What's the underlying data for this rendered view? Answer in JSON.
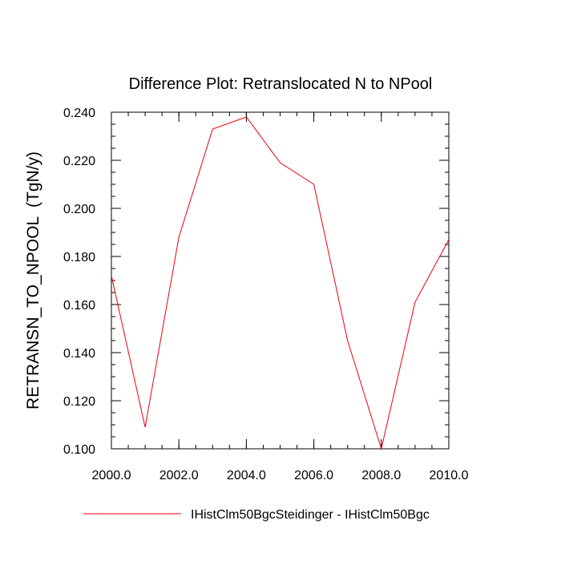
{
  "chart_data": {
    "type": "line",
    "title": "Difference Plot: Retranslocated N to NPool",
    "xlabel": "",
    "ylabel": "RETRANSN_TO_NPOOL  (TgN/y)",
    "xlim": [
      2000,
      2010
    ],
    "ylim": [
      0.1,
      0.24
    ],
    "x_ticks": [
      2000,
      2002,
      2004,
      2006,
      2008,
      2010
    ],
    "x_tick_labels": [
      "2000.0",
      "2002.0",
      "2004.0",
      "2006.0",
      "2008.0",
      "2010.0"
    ],
    "y_ticks": [
      0.1,
      0.12,
      0.14,
      0.16,
      0.18,
      0.2,
      0.22,
      0.24
    ],
    "y_tick_labels": [
      "0.100",
      "0.120",
      "0.140",
      "0.160",
      "0.180",
      "0.200",
      "0.220",
      "0.240"
    ],
    "grid": false,
    "legend_position": "bottom",
    "series": [
      {
        "name": "IHistClm50BgcSteidinger - IHistClm50Bgc",
        "color": "#e8000b",
        "x": [
          2000,
          2001,
          2002,
          2003,
          2004,
          2005,
          2006,
          2007,
          2008,
          2009,
          2010
        ],
        "y": [
          0.172,
          0.109,
          0.188,
          0.233,
          0.238,
          0.219,
          0.21,
          0.145,
          0.1,
          0.161,
          0.187
        ]
      }
    ]
  }
}
